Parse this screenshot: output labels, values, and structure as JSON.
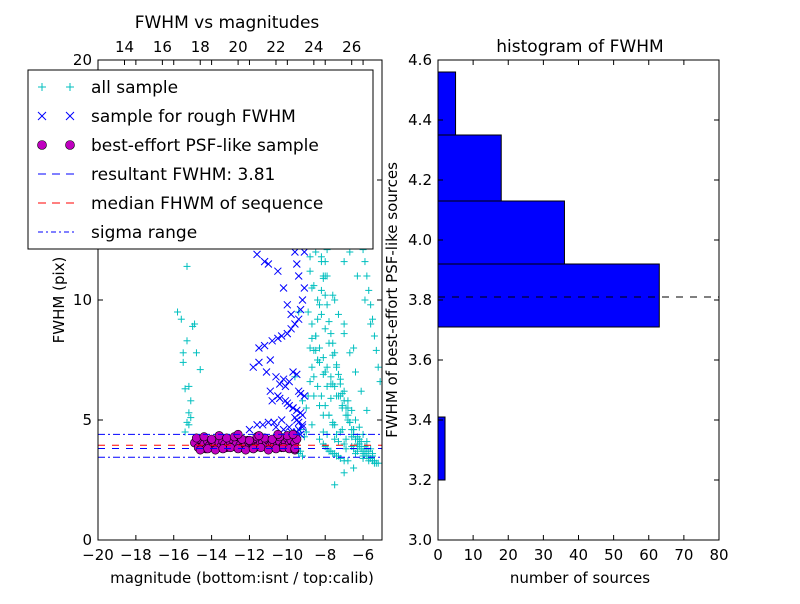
{
  "chart_data": [
    {
      "type": "scatter",
      "title": "FWHM vs magnitudes",
      "xlabel": "magnitude (bottom:isnt / top:calib)",
      "ylabel": "FWHM (pix)",
      "xlim": [
        -20,
        -5
      ],
      "ylim": [
        0,
        20
      ],
      "xticks": [
        "−20",
        "−18",
        "−16",
        "−14",
        "−12",
        "−10",
        "−8",
        "−6"
      ],
      "xtick_values": [
        -20,
        -18,
        -16,
        -14,
        -12,
        -10,
        -8,
        -6
      ],
      "yticks": [
        "0",
        "5",
        "10",
        "15",
        "20"
      ],
      "ytick_values": [
        0,
        5,
        10,
        15,
        20
      ],
      "top_xticks": [
        "14",
        "16",
        "18",
        "20",
        "22",
        "24",
        "26"
      ],
      "top_xtick_values": [
        14,
        16,
        18,
        20,
        22,
        24,
        26
      ],
      "top_offset": 32.6,
      "legend": {
        "placement": "upper-left",
        "entries": [
          {
            "label": "all sample",
            "marker": "plus",
            "color": "#00bfbf"
          },
          {
            "label": "sample for rough FWHM",
            "marker": "x",
            "color": "#0000ff"
          },
          {
            "label": "best-effort PSF-like sample",
            "marker": "circle",
            "color": "#bf00bf"
          },
          {
            "label": "resultant FWHM: 3.81",
            "marker": "dash",
            "color": "#0000ff"
          },
          {
            "label": "median FHWM of sequence",
            "marker": "dash",
            "color": "#ff0000"
          },
          {
            "label": "sigma range",
            "marker": "dashdot",
            "color": "#0000ff"
          }
        ]
      },
      "lines": [
        {
          "name": "resultant FWHM",
          "y": 3.81,
          "style": "dashed",
          "color": "#0000ff"
        },
        {
          "name": "median FHWM of sequence",
          "y": 3.95,
          "style": "dashed",
          "color": "#ff0000"
        },
        {
          "name": "sigma upper",
          "y": 4.4,
          "style": "dashdot",
          "color": "#0000ff"
        },
        {
          "name": "sigma lower",
          "y": 3.45,
          "style": "dashdot",
          "color": "#0000ff"
        }
      ],
      "series": [
        {
          "name": "all sample",
          "marker": "plus",
          "color": "#00bfbf",
          "x": [
            -15.8,
            -15.6,
            -15.3,
            -15.5,
            -15.4,
            -15.2,
            -15.1,
            -15.5,
            -15.3,
            -15.0,
            -14.8,
            -14.6,
            -15.4,
            -15.2,
            -15.1,
            -15.3,
            -14.9,
            -15.2,
            -9.6,
            -9.4,
            -9.5,
            -9.3,
            -9.2,
            -9.1,
            -9.0,
            -9.4,
            -9.3,
            -9.2,
            -9.0,
            -8.9,
            -8.8,
            -8.7,
            -8.6,
            -8.5,
            -8.4,
            -8.3,
            -8.2,
            -8.1,
            -8.0,
            -7.9,
            -7.8,
            -7.7,
            -7.6,
            -7.5,
            -7.4,
            -7.3,
            -7.2,
            -7.1,
            -7.0,
            -6.9,
            -6.8,
            -6.7,
            -6.6,
            -6.5,
            -6.4,
            -6.3,
            -6.2,
            -6.1,
            -6.0,
            -5.9,
            -5.8,
            -5.7,
            -5.6,
            -5.5,
            -5.4,
            -5.3,
            -5.2,
            -8.9,
            -8.7,
            -8.5,
            -8.3,
            -8.1,
            -7.9,
            -7.7,
            -7.5,
            -7.3,
            -7.1,
            -6.9,
            -6.7,
            -6.5,
            -6.3,
            -6.1,
            -5.9,
            -5.7,
            -5.5,
            -8.8,
            -8.6,
            -8.4,
            -8.2,
            -8.0,
            -7.8,
            -7.6,
            -7.4,
            -7.2,
            -7.0,
            -6.8,
            -6.6,
            -6.4,
            -6.2,
            -6.0,
            -5.8,
            -5.6,
            -8.5,
            -8.2,
            -7.9,
            -7.6,
            -7.3,
            -7.0,
            -6.7,
            -6.4,
            -6.1,
            -5.8,
            -8.4,
            -8.0,
            -7.7,
            -7.4,
            -7.1,
            -6.8,
            -6.5,
            -6.2,
            -5.9,
            -8.6,
            -8.3,
            -7.8,
            -7.5,
            -7.2,
            -6.9,
            -6.6,
            -6.3,
            -6.0,
            -8.7,
            -8.1,
            -7.5,
            -7.0,
            -6.5,
            -6.0,
            -8.8,
            -8.4,
            -8.0,
            -7.6,
            -7.2,
            -6.8,
            -6.4,
            -8.2,
            -7.8,
            -7.4,
            -7.0,
            -8.5,
            -8.0,
            -7.5,
            -7.0,
            -6.5,
            -8.9,
            -8.3,
            -7.7,
            -7.1,
            -6.7,
            -6.3,
            -5.9,
            -5.6,
            -7.9,
            -7.3,
            -6.9,
            -6.4,
            -6.0,
            -5.7,
            -5.4,
            -8.1,
            -7.6,
            -7.1,
            -6.6,
            -6.2,
            -5.8,
            -5.5,
            -8.6,
            -8.4,
            -8.2,
            -8.0,
            -7.8,
            -7.6,
            -7.4,
            -8.7,
            -8.5,
            -8.3,
            -8.1,
            -7.9,
            -7.7,
            -8.0,
            -7.8,
            -7.6,
            -7.4,
            -7.2,
            -7.0,
            -6.8,
            -8.3,
            -8.1,
            -7.9,
            -7.7,
            -7.5,
            -7.3,
            -8.6,
            -8.2,
            -7.8,
            -7.4,
            -7.0,
            -6.6,
            -9.0,
            -8.9,
            -8.8,
            -8.7,
            -8.6,
            -8.5,
            -8.4,
            -8.3,
            -8.2,
            -8.1,
            -8.0,
            -7.9,
            -7.8,
            -7.7,
            -7.6,
            -7.5,
            -7.4,
            -7.3,
            -7.2,
            -7.1,
            -7.0,
            -6.9,
            -6.8,
            -6.7,
            -6.6,
            -6.5,
            -6.4,
            -6.3,
            -6.2,
            -6.1,
            -6.0,
            -5.9,
            -5.8,
            -5.7,
            -5.6,
            -5.5,
            -5.4,
            -5.3,
            -5.2,
            -5.1,
            -7.5,
            -7.0,
            -6.5
          ],
          "y": [
            9.5,
            9.2,
            8.3,
            7.4,
            6.3,
            5.3,
            5.8,
            7.8,
            11.4,
            8.9,
            7.8,
            7.1,
            4.5,
            6.4,
            5.1,
            4.9,
            9.0,
            4.8,
            6.8,
            9.5,
            4.4,
            4.6,
            5.8,
            4.3,
            4.5,
            3.6,
            3.7,
            3.5,
            12.8,
            13.9,
            11.8,
            10.5,
            15.8,
            14.2,
            13.1,
            12.4,
            11.6,
            10.9,
            10.2,
            9.8,
            9.1,
            8.6,
            8.2,
            7.8,
            7.3,
            6.9,
            6.5,
            6.1,
            5.8,
            5.5,
            5.2,
            4.9,
            4.6,
            4.4,
            4.2,
            4.0,
            3.9,
            3.8,
            3.7,
            3.6,
            3.5,
            3.4,
            3.4,
            3.3,
            3.3,
            3.2,
            3.2,
            9.5,
            9.0,
            8.5,
            8.0,
            7.6,
            7.2,
            6.8,
            6.4,
            6.0,
            5.6,
            5.2,
            4.9,
            4.6,
            4.3,
            4.1,
            3.9,
            3.7,
            3.5,
            11.2,
            10.6,
            10.0,
            9.4,
            8.8,
            8.2,
            7.7,
            7.2,
            6.7,
            6.2,
            5.8,
            5.4,
            5.0,
            4.7,
            4.4,
            4.1,
            3.8,
            12.5,
            11.8,
            11.0,
            10.2,
            9.4,
            8.6,
            7.8,
            7.0,
            6.2,
            5.4,
            7.5,
            7.0,
            6.5,
            6.0,
            5.5,
            5.0,
            4.6,
            4.2,
            3.9,
            6.0,
            5.6,
            5.2,
            4.8,
            4.5,
            4.2,
            3.9,
            3.7,
            3.5,
            4.8,
            4.5,
            4.2,
            4.0,
            3.8,
            3.6,
            8.0,
            7.5,
            7.0,
            6.5,
            6.0,
            5.5,
            5.0,
            14.0,
            13.2,
            12.4,
            11.6,
            12.0,
            11.0,
            10.0,
            9.0,
            8.0,
            16.2,
            15.0,
            14.0,
            13.0,
            12.0,
            11.0,
            10.0,
            9.0,
            4.4,
            4.1,
            3.8,
            3.6,
            3.4,
            3.3,
            3.2,
            5.2,
            4.9,
            4.6,
            4.3,
            4.0,
            3.8,
            3.6,
            6.8,
            6.4,
            6.0,
            5.6,
            5.2,
            4.8,
            4.4,
            8.4,
            7.9,
            7.4,
            6.9,
            6.4,
            5.9,
            3.9,
            3.7,
            3.6,
            3.5,
            3.4,
            3.3,
            3.3,
            4.2,
            4.0,
            3.8,
            3.7,
            3.6,
            3.5,
            19.0,
            18.2,
            17.5,
            17.0,
            16.6,
            16.3,
            5.5,
            6.0,
            6.6,
            7.2,
            7.9,
            8.5,
            9.2,
            9.8,
            10.4,
            11.0,
            11.6,
            12.1,
            12.6,
            13.0,
            13.4,
            13.7,
            14.0,
            14.2,
            14.4,
            14.5,
            14.6,
            14.6,
            14.5,
            14.4,
            14.2,
            14.0,
            13.7,
            13.4,
            13.0,
            12.6,
            12.1,
            11.6,
            11.0,
            10.4,
            9.8,
            9.2,
            8.5,
            7.9,
            7.2,
            6.6,
            2.3,
            2.8,
            3.0
          ]
        },
        {
          "name": "sample for rough FWHM",
          "marker": "x",
          "color": "#0000ff",
          "x": [
            -12.9,
            -12.8,
            -11.6,
            -11.2,
            -11.0,
            -10.5,
            -10.2,
            -10.0,
            -9.8,
            -9.6,
            -9.5,
            -9.4,
            -9.3,
            -9.2,
            -9.1,
            -11.5,
            -11.2,
            -10.8,
            -10.5,
            -10.3,
            -10.0,
            -9.8,
            -9.6,
            -9.4,
            -9.3,
            -9.2,
            -9.1,
            -11.8,
            -11.5,
            -11.1,
            -10.9,
            -10.6,
            -10.4,
            -10.2,
            -10.1,
            -9.9,
            -9.7,
            -9.5,
            -9.4,
            -9.3,
            -9.1,
            -10.8,
            -10.4,
            -10.0,
            -9.7,
            -9.5,
            -9.3,
            -9.2,
            -11.3,
            -10.7,
            -10.3,
            -9.9,
            -9.6,
            -9.4,
            -9.2,
            -12.0,
            -11.6,
            -11.0,
            -10.6,
            -10.2,
            -9.8,
            -9.5,
            -9.3,
            -10.9,
            -10.5,
            -10.1,
            -9.9,
            -9.7,
            -9.5,
            -9.4,
            -9.2
          ],
          "y": [
            12.9,
            12.8,
            11.9,
            11.6,
            11.5,
            11.2,
            10.5,
            9.8,
            9.4,
            12.0,
            11.5,
            11.0,
            12.5,
            12.9,
            12.0,
            8.0,
            8.1,
            8.3,
            8.4,
            8.5,
            8.6,
            8.8,
            9.0,
            9.2,
            9.6,
            10.0,
            10.5,
            7.2,
            7.4,
            7.0,
            7.5,
            6.8,
            6.5,
            6.7,
            6.4,
            6.6,
            7.0,
            6.9,
            6.2,
            6.1,
            6.0,
            5.8,
            5.9,
            5.7,
            5.5,
            5.4,
            5.3,
            5.2,
            4.8,
            4.9,
            5.0,
            4.7,
            5.1,
            4.6,
            4.7,
            4.6,
            4.8,
            4.9,
            4.7,
            4.6,
            4.5,
            4.5,
            4.4,
            6.2,
            6.0,
            5.8,
            5.6,
            5.5,
            5.0,
            4.9,
            4.8
          ]
        },
        {
          "name": "best-effort PSF-like sample",
          "marker": "circle",
          "color": "#bf00bf",
          "x": [
            -14.9,
            -14.7,
            -14.6,
            -14.5,
            -14.4,
            -14.3,
            -14.2,
            -14.1,
            -14.0,
            -13.9,
            -13.8,
            -13.7,
            -13.6,
            -13.5,
            -13.4,
            -13.3,
            -13.2,
            -13.1,
            -13.0,
            -12.9,
            -12.8,
            -12.7,
            -12.6,
            -12.5,
            -12.4,
            -12.3,
            -12.2,
            -12.1,
            -12.0,
            -11.9,
            -11.8,
            -11.7,
            -11.6,
            -11.5,
            -11.4,
            -11.3,
            -11.2,
            -11.1,
            -11.0,
            -10.9,
            -10.8,
            -10.7,
            -10.6,
            -10.5,
            -10.4,
            -10.3,
            -10.2,
            -10.1,
            -10.0,
            -9.9,
            -9.8,
            -9.7,
            -9.6,
            -9.5,
            -14.8,
            -14.4,
            -14.0,
            -13.6,
            -13.2,
            -12.8,
            -12.4,
            -12.0,
            -11.6,
            -11.2,
            -10.8,
            -10.4,
            -10.0,
            -9.7,
            -14.6,
            -14.2,
            -13.8,
            -13.4,
            -13.0,
            -12.6,
            -12.2,
            -11.8,
            -11.4,
            -11.0,
            -10.6,
            -10.2,
            -9.9,
            -9.6,
            -12.6,
            -11.5,
            -10.5,
            -9.6
          ],
          "y": [
            4.05,
            3.85,
            4.2,
            3.9,
            4.0,
            3.8,
            4.1,
            3.95,
            4.15,
            3.9,
            4.0,
            3.85,
            4.05,
            3.9,
            4.1,
            4.0,
            3.85,
            3.95,
            4.05,
            4.2,
            3.9,
            4.0,
            4.3,
            3.95,
            3.85,
            4.1,
            4.0,
            4.15,
            3.9,
            4.05,
            4.0,
            3.85,
            4.2,
            3.95,
            4.05,
            4.1,
            3.9,
            4.0,
            4.15,
            3.95,
            4.05,
            3.9,
            4.2,
            4.0,
            4.1,
            3.85,
            3.95,
            4.05,
            4.25,
            4.0,
            4.15,
            3.9,
            4.05,
            4.2,
            4.25,
            4.3,
            4.2,
            4.35,
            4.25,
            4.3,
            4.2,
            4.15,
            4.3,
            4.25,
            4.2,
            4.3,
            4.35,
            4.4,
            3.75,
            3.8,
            3.75,
            3.8,
            3.85,
            3.8,
            3.75,
            3.8,
            3.85,
            3.75,
            3.8,
            3.85,
            3.8,
            3.75,
            4.4,
            4.35,
            4.4,
            3.8
          ]
        }
      ]
    },
    {
      "type": "bar",
      "orientation": "horizontal",
      "title": "histogram of FWHM",
      "xlabel": "number of sources",
      "ylabel": "FWHM of best-effort PSF-like sources",
      "xlim": [
        0,
        80
      ],
      "ylim": [
        3.0,
        4.6
      ],
      "xticks": [
        "0",
        "10",
        "20",
        "30",
        "40",
        "50",
        "60",
        "70",
        "80"
      ],
      "xtick_values": [
        0,
        10,
        20,
        30,
        40,
        50,
        60,
        70,
        80
      ],
      "yticks": [
        "3.0",
        "3.2",
        "3.4",
        "3.6",
        "3.8",
        "4.0",
        "4.2",
        "4.4",
        "4.6"
      ],
      "ytick_values": [
        3.0,
        3.2,
        3.4,
        3.6,
        3.8,
        4.0,
        4.2,
        4.4,
        4.6
      ],
      "bar_color": "#0000ff",
      "bins": [
        {
          "from": 3.2,
          "to": 3.41,
          "count": 2
        },
        {
          "from": 3.71,
          "to": 3.92,
          "count": 63
        },
        {
          "from": 3.92,
          "to": 4.13,
          "count": 36
        },
        {
          "from": 4.13,
          "to": 4.35,
          "count": 18
        },
        {
          "from": 4.35,
          "to": 4.56,
          "count": 5
        }
      ],
      "line": {
        "y": 3.81,
        "style": "dashed",
        "color": "#000000"
      }
    }
  ]
}
